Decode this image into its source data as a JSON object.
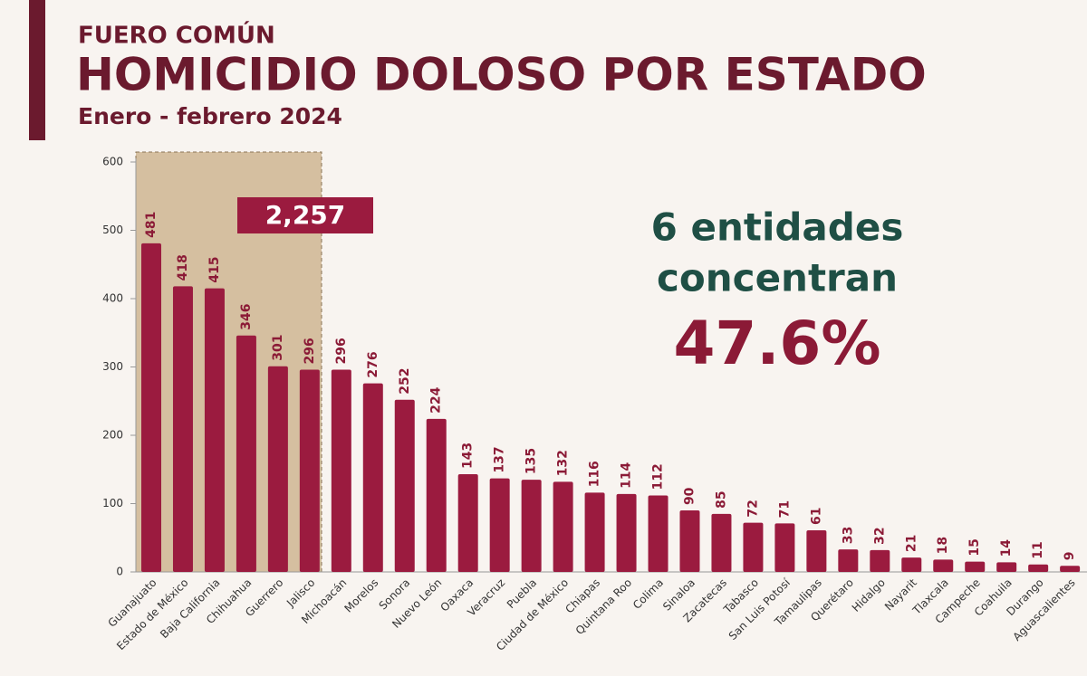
{
  "chart_data": {
    "type": "bar",
    "kicker": "FUERO COMÚN",
    "title": "HOMICIDIO DOLOSO POR ESTADO",
    "subtitle": "Enero - febrero 2024",
    "highlight_label": "2,257",
    "annotation": [
      "6 entidades",
      "concentran",
      "47.6%"
    ],
    "categories": [
      "Guanajuato",
      "Estado de México",
      "Baja California",
      "Chihuahua",
      "Guerrero",
      "Jalisco",
      "Michoacán",
      "Morelos",
      "Sonora",
      "Nuevo León",
      "Oaxaca",
      "Veracruz",
      "Puebla",
      "Ciudad de México",
      "Chiapas",
      "Quintana Roo",
      "Colima",
      "Sinaloa",
      "Zacatecas",
      "Tabasco",
      "San Luis Potosí",
      "Tamaulipas",
      "Querétaro",
      "Hidalgo",
      "Nayarit",
      "Tlaxcala",
      "Campeche",
      "Coahuila",
      "Durango",
      "Aguascalientes"
    ],
    "values": [
      481,
      418,
      415,
      346,
      301,
      296,
      296,
      276,
      252,
      224,
      143,
      137,
      135,
      132,
      116,
      114,
      112,
      90,
      85,
      72,
      71,
      61,
      33,
      32,
      21,
      18,
      15,
      14,
      11,
      9
    ],
    "color": "#9b1b3f",
    "ylim": [
      0,
      600
    ],
    "yticks": [
      0,
      100,
      200,
      300,
      400,
      500,
      600
    ]
  }
}
